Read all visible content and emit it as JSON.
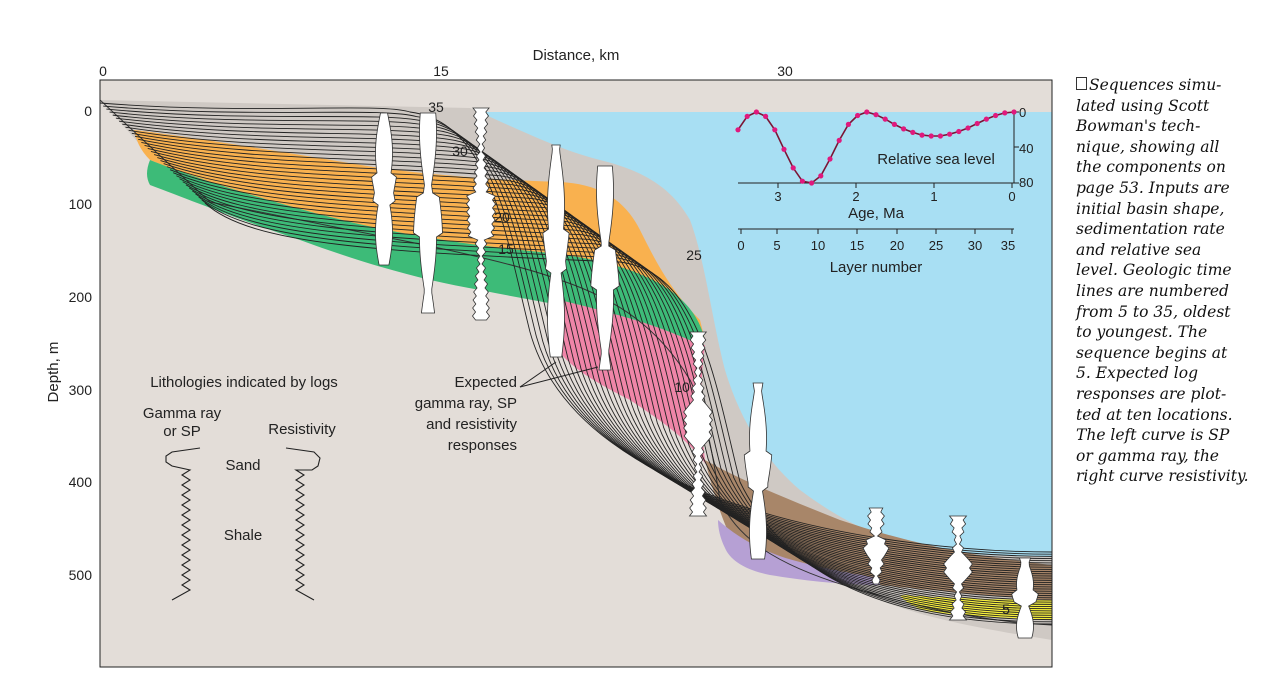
{
  "axes": {
    "x_title": "Distance, km",
    "x_ticks": [
      "0",
      "15",
      "30"
    ],
    "y_title": "Depth, m",
    "y_ticks": [
      "0",
      "100",
      "200",
      "300",
      "400",
      "500"
    ]
  },
  "timeline_labels": [
    "35",
    "30",
    "25",
    "20",
    "15",
    "10",
    "5"
  ],
  "lithology_legend": {
    "title": "Lithologies indicated by logs",
    "gamma_label_1": "Gamma ray",
    "gamma_label_2": "or SP",
    "resistivity_label": "Resistivity",
    "sand_label": "Sand",
    "shale_label": "Shale"
  },
  "expected_callout": [
    "Expected",
    "gamma ray, SP",
    "and resistivity",
    "responses"
  ],
  "inset": {
    "series_label": "Relative sea level",
    "right_ticks": [
      "0",
      "40",
      "80"
    ],
    "age_ticks": [
      "3",
      "2",
      "1",
      "0"
    ],
    "age_title": "Age, Ma",
    "layer_ticks": [
      "0",
      "5",
      "10",
      "15",
      "20",
      "25",
      "30",
      "35"
    ],
    "layer_title": "Layer number",
    "sea_level_points": [
      20,
      5,
      0,
      5,
      20,
      42,
      63,
      78,
      80,
      72,
      53,
      32,
      14,
      4,
      0,
      3,
      8,
      14,
      19,
      23,
      26,
      27,
      27,
      25,
      22,
      18,
      13,
      8,
      4,
      1,
      0
    ],
    "colors": {
      "line": "#7b1535",
      "marker": "#e0197d"
    }
  },
  "caption_lines": [
    "Sequences simu-",
    "lated using Scott",
    "Bowman's tech-",
    "nique, showing all",
    "the components on",
    "page 53. Inputs are",
    "initial basin shape,",
    "sedimentation rate",
    "and relative sea",
    "level. Geologic time",
    "lines are numbered",
    "from 5 to 35, oldest",
    "to youngest. The",
    "sequence begins at",
    "5. Expected log",
    "responses are plot-",
    "ted at ten locations.",
    "The left curve is SP",
    "or gamma ray, the",
    "right curve resistivity."
  ],
  "colors": {
    "basement": "#e3ddd8",
    "sea": "#a8dff3",
    "orange": "#f9b14f",
    "green": "#3dbb78",
    "pink": "#ef85a8",
    "brown": "#a88669",
    "purple": "#b6a0d4",
    "yellow": "#f6ee3e",
    "gray_seq": "#cfc9c4"
  }
}
